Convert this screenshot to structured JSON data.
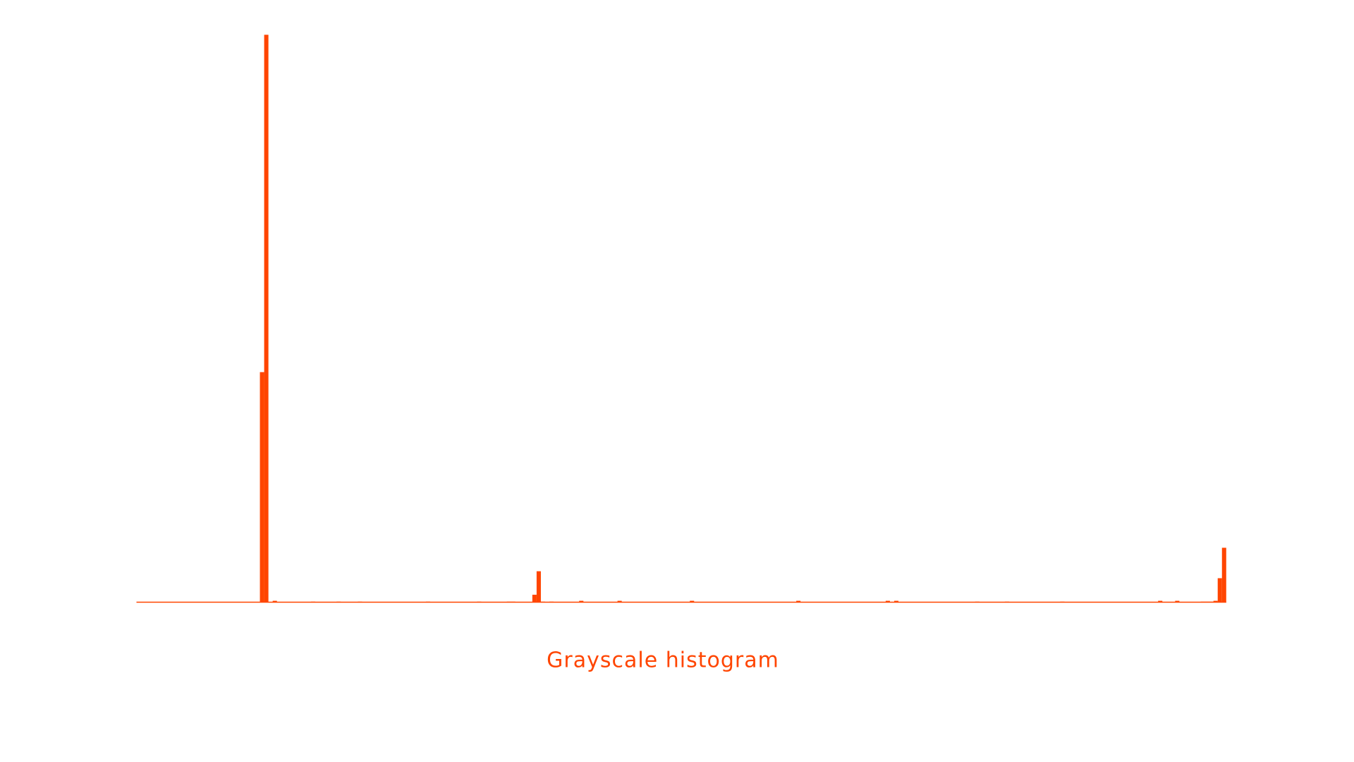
{
  "chart_data": {
    "type": "histogram",
    "title": "Grayscale histogram",
    "color": "#ff4500",
    "bins": [
      0,
      1,
      2,
      3,
      4,
      5,
      6,
      7,
      8,
      9,
      10,
      11,
      12,
      13,
      14,
      15,
      16,
      17,
      18,
      19,
      20,
      21,
      22,
      23,
      24,
      25,
      26,
      27,
      28,
      29,
      30,
      31,
      32,
      33,
      34,
      35,
      36,
      37,
      38,
      39,
      40,
      41,
      42,
      43,
      44,
      45,
      46,
      47,
      48,
      49,
      50,
      51,
      52,
      53,
      54,
      55,
      56,
      57,
      58,
      59,
      60,
      61,
      62,
      63,
      64,
      65,
      66,
      67,
      68,
      69,
      70,
      71,
      72,
      73,
      74,
      75,
      76,
      77,
      78,
      79,
      80,
      81,
      82,
      83,
      84,
      85,
      86,
      87,
      88,
      89,
      90,
      91,
      92,
      93,
      94,
      95,
      96,
      97,
      98,
      99,
      100,
      101,
      102,
      103,
      104,
      105,
      106,
      107,
      108,
      109,
      110,
      111,
      112,
      113,
      114,
      115,
      116,
      117,
      118,
      119,
      120,
      121,
      122,
      123,
      124,
      125,
      126,
      127,
      128,
      129,
      130,
      131,
      132,
      133,
      134,
      135,
      136,
      137,
      138,
      139,
      140,
      141,
      142,
      143,
      144,
      145,
      146,
      147,
      148,
      149,
      150,
      151,
      152,
      153,
      154,
      155,
      156,
      157,
      158,
      159,
      160,
      161,
      162,
      163,
      164,
      165,
      166,
      167,
      168,
      169,
      170,
      171,
      172,
      173,
      174,
      175,
      176,
      177,
      178,
      179,
      180,
      181,
      182,
      183,
      184,
      185,
      186,
      187,
      188,
      189,
      190,
      191,
      192,
      193,
      194,
      195,
      196,
      197,
      198,
      199,
      200,
      201,
      202,
      203,
      204,
      205,
      206,
      207,
      208,
      209,
      210,
      211,
      212,
      213,
      214,
      215,
      216,
      217,
      218,
      219,
      220,
      221,
      222,
      223,
      224,
      225,
      226,
      227,
      228,
      229,
      230,
      231,
      232,
      233,
      234,
      235,
      236,
      237,
      238,
      239,
      240,
      241,
      242,
      243,
      244,
      245,
      246,
      247,
      248,
      249,
      250,
      251,
      252,
      253,
      254,
      255,
      256
    ],
    "values": [
      0,
      0,
      0,
      0,
      0,
      0,
      0,
      0,
      0,
      0,
      0,
      0,
      0,
      0,
      0,
      0,
      0,
      0,
      0,
      0,
      0,
      0,
      0,
      0,
      0,
      0,
      0,
      0,
      0,
      265,
      653,
      0,
      2,
      0,
      0,
      0,
      0,
      0,
      0,
      0,
      0,
      1,
      0,
      0,
      0,
      0,
      0,
      1,
      0,
      0,
      0,
      0,
      1,
      0,
      0,
      0,
      0,
      0,
      0,
      0,
      0,
      0,
      0,
      0,
      0,
      0,
      0,
      0,
      1,
      0,
      0,
      0,
      0,
      0,
      0,
      0,
      0,
      0,
      0,
      0,
      1,
      0,
      0,
      0,
      0,
      0,
      0,
      1,
      1,
      0,
      0,
      0,
      0,
      9,
      36,
      1,
      0,
      1,
      0,
      0,
      0,
      0,
      0,
      0,
      2,
      0,
      0,
      0,
      0,
      0,
      0,
      0,
      0,
      2,
      0,
      0,
      0,
      0,
      0,
      0,
      0,
      0,
      0,
      0,
      0,
      0,
      0,
      0,
      0,
      0,
      2,
      0,
      0,
      0,
      0,
      0,
      0,
      0,
      0,
      0,
      0,
      0,
      0,
      0,
      0,
      0,
      0,
      0,
      0,
      0,
      0,
      0,
      0,
      0,
      0,
      2,
      0,
      0,
      0,
      0,
      0,
      0,
      0,
      0,
      0,
      0,
      0,
      0,
      0,
      0,
      0,
      0,
      0,
      0,
      0,
      0,
      2,
      0,
      2,
      0,
      0,
      0,
      0,
      0,
      0,
      0,
      0,
      0,
      0,
      0,
      0,
      0,
      0,
      0,
      0,
      0,
      0,
      1,
      0,
      0,
      0,
      0,
      0,
      0,
      1,
      0,
      0,
      0,
      0,
      0,
      0,
      0,
      0,
      0,
      0,
      0,
      0,
      1,
      0,
      0,
      0,
      0,
      0,
      0,
      0,
      0,
      0,
      0,
      0,
      0,
      0,
      0,
      0,
      0,
      0,
      0,
      0,
      0,
      0,
      0,
      2,
      0,
      0,
      0,
      2,
      0,
      0,
      0,
      0,
      0,
      1,
      1,
      1,
      2,
      28,
      63
    ],
    "xlim": [
      0,
      256
    ],
    "ylim": [
      0,
      653
    ]
  }
}
